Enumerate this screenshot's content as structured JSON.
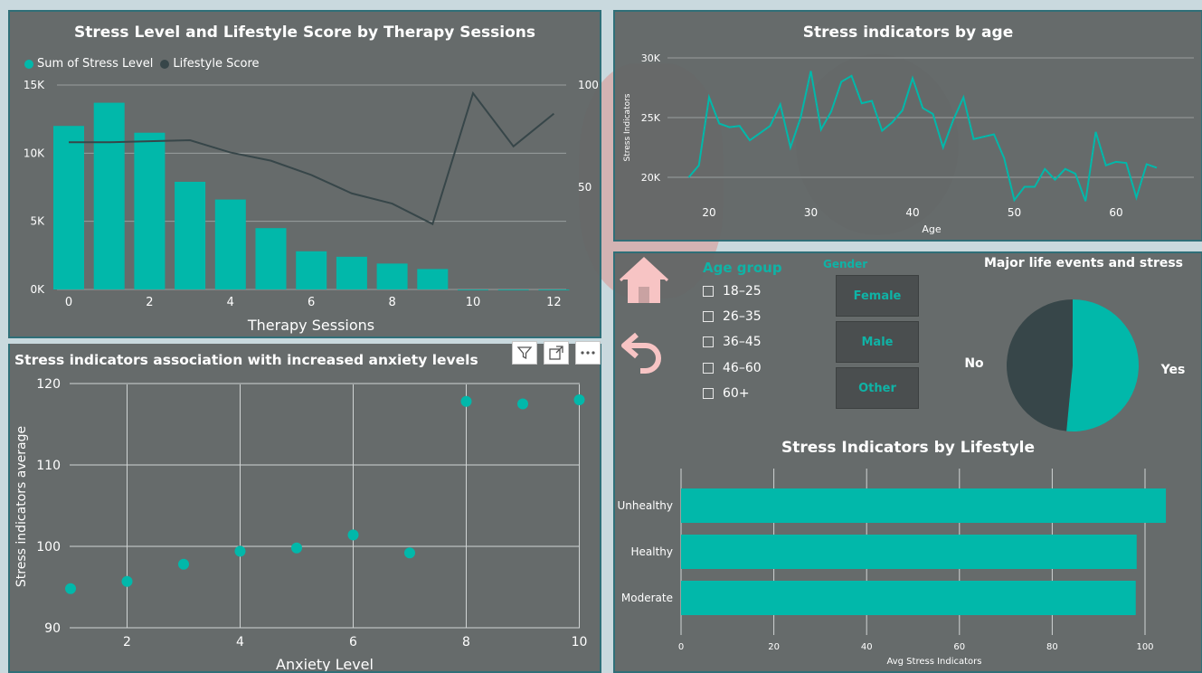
{
  "theme": {
    "teal": "#01b8aa",
    "dark": "#374649",
    "panel": "#626666"
  },
  "toolbar_icons": [
    "filter-icon",
    "focus-mode-icon",
    "more-options-icon"
  ],
  "nav": {
    "home_icon": "home-icon",
    "back_icon": "back-arrow-icon"
  },
  "charts": {
    "combo": {
      "title": "Stress Level and Lifestyle Score by Therapy Sessions",
      "legend": [
        "Sum of Stress Level",
        "Lifestyle Score"
      ],
      "xlabel": "Therapy Sessions",
      "y_ticks": [
        "0K",
        "5K",
        "10K",
        "15K"
      ],
      "y2_ticks": [
        "50",
        "100"
      ],
      "x_ticks": [
        "0",
        "2",
        "4",
        "6",
        "8",
        "10",
        "12"
      ]
    },
    "age_line": {
      "title": "Stress indicators by age",
      "xlabel": "Age",
      "ylabel": "Stress Indicators",
      "y_ticks": [
        "20K",
        "25K",
        "30K"
      ],
      "x_ticks": [
        "20",
        "30",
        "40",
        "50",
        "60"
      ]
    },
    "scatter": {
      "title": "Stress indicators association with increased anxiety levels",
      "xlabel": "Anxiety Level",
      "ylabel": "Stress indicators  average",
      "y_ticks": [
        "90",
        "100",
        "110",
        "120"
      ],
      "x_ticks": [
        "2",
        "4",
        "6",
        "8",
        "10"
      ]
    },
    "pie": {
      "title": "Major life events and stress",
      "labels": [
        "No",
        "Yes"
      ]
    },
    "hbar": {
      "title": "Stress Indicators by Lifestyle",
      "xlabel": "Avg Stress Indicators",
      "x_ticks": [
        "0",
        "20",
        "40",
        "60",
        "80",
        "100"
      ]
    }
  },
  "slicers": {
    "age_group": {
      "title": "Age group",
      "options": [
        "18–25",
        "26–35",
        "36–45",
        "46–60",
        "60+"
      ]
    },
    "gender": {
      "title": "Gender",
      "options": [
        "Female",
        "Male",
        "Other"
      ]
    }
  },
  "chart_data": [
    {
      "type": "bar",
      "title": "Stress Level and Lifestyle Score by Therapy Sessions",
      "xlabel": "Therapy Sessions",
      "categories": [
        0,
        1,
        2,
        3,
        4,
        5,
        6,
        7,
        8,
        9,
        10,
        11,
        12
      ],
      "series": [
        {
          "name": "Sum of Stress Level",
          "type": "bar",
          "axis": "left",
          "values": [
            12000,
            13700,
            11500,
            7900,
            6600,
            4500,
            2800,
            2400,
            1900,
            1500,
            0,
            0,
            0
          ]
        },
        {
          "name": "Lifestyle Score",
          "type": "line",
          "axis": "right",
          "values": [
            72,
            72,
            72.5,
            73,
            67,
            63,
            56,
            47,
            42,
            32,
            96,
            70,
            86
          ]
        }
      ],
      "ylim": [
        0,
        15000
      ],
      "y2lim": [
        0,
        100
      ],
      "grid": true,
      "legend": "top-left"
    },
    {
      "type": "line",
      "title": "Stress indicators by age",
      "xlabel": "Age",
      "ylabel": "Stress Indicators",
      "x": [
        18,
        19,
        20,
        21,
        22,
        23,
        24,
        25,
        26,
        27,
        28,
        29,
        30,
        31,
        32,
        33,
        34,
        35,
        36,
        37,
        38,
        39,
        40,
        41,
        42,
        43,
        44,
        45,
        46,
        47,
        48,
        49,
        50,
        51,
        52,
        53,
        54,
        55,
        56,
        57,
        58,
        59,
        60,
        61,
        62,
        63,
        64
      ],
      "series": [
        {
          "values": [
            20000,
            21000,
            26700,
            24500,
            24200,
            24300,
            23100,
            23700,
            24300,
            26100,
            22500,
            25000,
            28900,
            24000,
            25500,
            28000,
            28500,
            26200,
            26400,
            23900,
            24600,
            25600,
            28300,
            25800,
            25300,
            22500,
            24800,
            26700,
            23200,
            23400,
            23600,
            21600,
            18100,
            19200,
            19200,
            20700,
            19800,
            20700,
            20300,
            18000,
            23800,
            21000,
            21300,
            21200,
            18300,
            21100,
            20800
          ]
        }
      ],
      "xlim": [
        17,
        65
      ],
      "ylim": [
        18000,
        30000
      ],
      "grid": true
    },
    {
      "type": "scatter",
      "title": "Stress indicators association with increased anxiety levels",
      "xlabel": "Anxiety Level",
      "ylabel": "Stress indicators  average",
      "x": [
        1,
        2,
        3,
        4,
        5,
        6,
        7,
        8,
        9,
        10
      ],
      "y": [
        94.8,
        95.7,
        97.8,
        99.4,
        99.8,
        101.4,
        99.2,
        117.8,
        117.5,
        118.0
      ],
      "xlim": [
        1,
        10
      ],
      "ylim": [
        90,
        120
      ],
      "grid": true
    },
    {
      "type": "pie",
      "title": "Major life events and stress",
      "labels": [
        "Yes",
        "No"
      ],
      "values": [
        51.5,
        48.5
      ]
    },
    {
      "type": "bar",
      "orientation": "horizontal",
      "title": "Stress Indicators by Lifestyle",
      "xlabel": "Avg Stress Indicators",
      "categories": [
        "Unhealthy",
        "Healthy",
        "Moderate"
      ],
      "values": [
        104.5,
        98.2,
        98.0
      ],
      "xlim": [
        0,
        105
      ],
      "grid": true
    }
  ]
}
